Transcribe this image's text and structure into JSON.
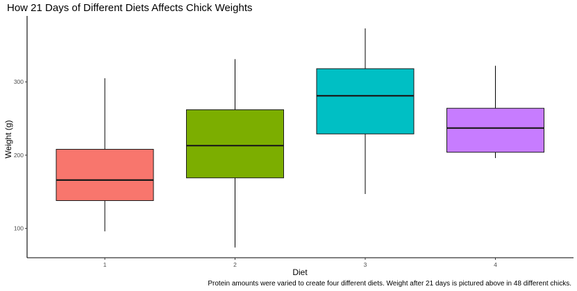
{
  "chart_data": {
    "type": "boxplot",
    "title": "How 21 Days of Different Diets Affects Chick Weights",
    "xlabel": "Diet",
    "ylabel": "Weight (g)",
    "caption": "Protein amounts were varied to create four different diets. Weight after 21 days is pictured above in 48 different chicks.",
    "categories": [
      "1",
      "2",
      "3",
      "4"
    ],
    "yticks": [
      100,
      200,
      300
    ],
    "ylim": [
      60,
      390
    ],
    "grid": false,
    "legend": "none",
    "boxes": [
      {
        "category": "1",
        "min": 96,
        "q1": 138,
        "median": 166,
        "q3": 208,
        "max": 305,
        "color": "#F8766D"
      },
      {
        "category": "2",
        "min": 74,
        "q1": 169,
        "median": 213,
        "q3": 262,
        "max": 331,
        "color": "#7CAE00"
      },
      {
        "category": "3",
        "min": 147,
        "q1": 229,
        "median": 281,
        "q3": 318,
        "max": 373,
        "color": "#00BFC4"
      },
      {
        "category": "4",
        "min": 196,
        "q1": 204,
        "median": 237,
        "q3": 264,
        "max": 322,
        "color": "#C77CFF"
      }
    ]
  }
}
